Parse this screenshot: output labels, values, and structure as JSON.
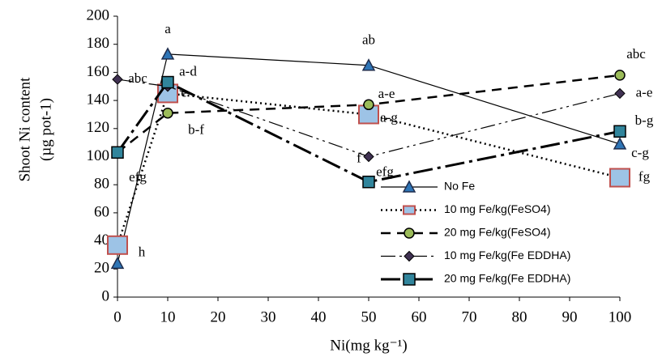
{
  "chart_data": {
    "type": "line",
    "y_label": [
      "Shoot Ni content",
      "(µg pot-1)"
    ],
    "x_label": "Ni(mg kg⁻¹)",
    "x": [
      0,
      10,
      50,
      100
    ],
    "xlim": [
      0,
      100
    ],
    "xticks": [
      0,
      10,
      20,
      30,
      40,
      50,
      60,
      70,
      80,
      90,
      100
    ],
    "ylim": [
      0,
      200
    ],
    "yticks": [
      0,
      20,
      40,
      60,
      80,
      100,
      120,
      140,
      160,
      180,
      200
    ],
    "series": [
      {
        "name": "No Fe",
        "color": "#2e75b6",
        "values": [
          24,
          173,
          165,
          109
        ],
        "point_labels": [
          null,
          "a",
          "ab",
          "c-g"
        ]
      },
      {
        "name": "10 mg Fe/kg(FeSO4)",
        "color": "#c0504d",
        "values": [
          37,
          145,
          130,
          85
        ],
        "point_labels": [
          "h",
          "e",
          "a-g",
          "fg"
        ]
      },
      {
        "name": "20 mg Fe/kg(FeSO4)",
        "color": "#9bbb59",
        "values": [
          103,
          131,
          137,
          158
        ],
        "point_labels": [
          "efg",
          "b-f",
          "a-e",
          "abc"
        ]
      },
      {
        "name": "10 mg Fe/kg(Fe EDDHA)",
        "color": "#403152",
        "values": [
          155,
          150,
          100,
          145
        ],
        "point_labels": [
          "abc",
          null,
          "efg",
          "a-e"
        ]
      },
      {
        "name": "20 mg Fe/kg(Fe EDDHA)",
        "color": "#31859c",
        "values": [
          103,
          153,
          82,
          118
        ],
        "point_labels": [
          null,
          "a-d",
          "f",
          "b-g"
        ]
      }
    ]
  }
}
